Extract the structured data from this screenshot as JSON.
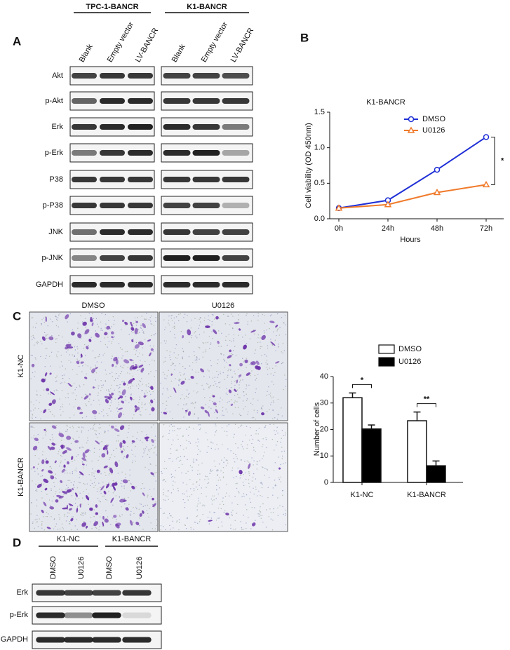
{
  "panel_labels": [
    "A",
    "B",
    "C",
    "D"
  ],
  "blot_a": {
    "groups": [
      "TPC-1-BANCR",
      "K1-BANCR"
    ],
    "lanes": [
      "Blank",
      "Empty vector",
      "LV-BANCR"
    ],
    "rows": [
      "Akt",
      "p-Akt",
      "Erk",
      "p-Erk",
      "P38",
      "p-P38",
      "JNK",
      "p-JNK",
      "GAPDH"
    ]
  },
  "micrographs": {
    "columns": [
      "DMSO",
      "U0126"
    ],
    "rows": [
      "K1-NC",
      "K1-BANCR"
    ]
  },
  "blot_d": {
    "groups": [
      "K1-NC",
      "K1-BANCR"
    ],
    "lanes": [
      "DMSO",
      "U0126",
      "DMSO",
      "U0126"
    ],
    "rows": [
      "Erk",
      "p-Erk",
      "GAPDH"
    ]
  },
  "chart_data": [
    {
      "type": "line",
      "title": "K1-BANCR",
      "x_label": "Hours",
      "y_label": "Cell viability (OD 450nm)",
      "categories": [
        "0h",
        "24h",
        "48h",
        "72h"
      ],
      "series": [
        {
          "name": "DMSO",
          "color": "#1f2fd6",
          "marker": "circle",
          "values": [
            0.15,
            0.26,
            0.69,
            1.15
          ]
        },
        {
          "name": "U0126",
          "color": "#f07a2a",
          "marker": "triangle",
          "values": [
            0.15,
            0.2,
            0.37,
            0.48
          ]
        }
      ],
      "ylim": [
        0,
        1.5
      ],
      "yticks": [
        {
          "value": 0,
          "label": "0.0"
        },
        {
          "value": 0.5,
          "label": "0.5"
        },
        {
          "value": 1,
          "label": "1.0"
        },
        {
          "value": 1.5,
          "label": "1.5"
        }
      ],
      "annotations": [
        "*"
      ]
    },
    {
      "type": "bar",
      "y_label": "Number of cells",
      "categories": [
        "K1-NC",
        "K1-BANCR"
      ],
      "series": [
        {
          "name": "DMSO",
          "color": "#ffffff",
          "values": [
            32,
            23.3
          ],
          "errors": [
            1.8,
            3.3
          ]
        },
        {
          "name": "U0126",
          "color": "#000000",
          "values": [
            20.2,
            6.3
          ],
          "errors": [
            1.5,
            1.8
          ]
        }
      ],
      "ylim": [
        0,
        40
      ],
      "yticks": [
        0,
        10,
        20,
        30,
        40
      ],
      "annotations": [
        "*",
        "**"
      ]
    }
  ]
}
